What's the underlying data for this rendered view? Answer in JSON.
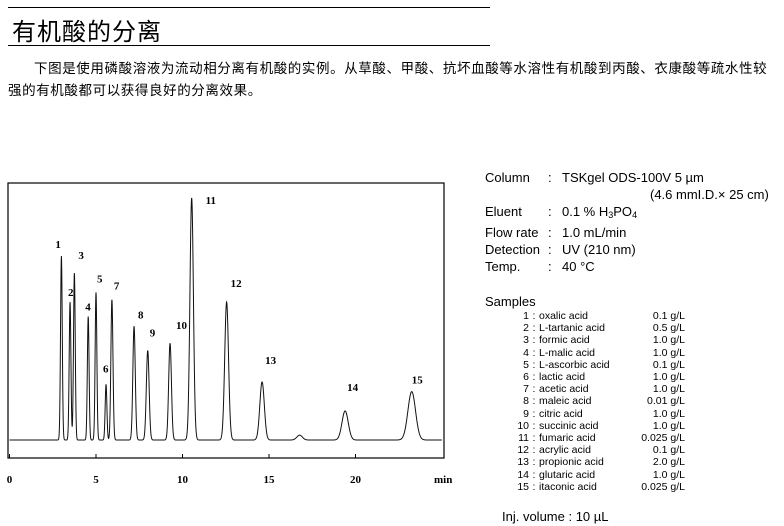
{
  "header": {
    "title": "有机酸的分离"
  },
  "description": "下图是使用磷酸溶液为流动相分离有机酸的实例。从草酸、甲酸、抗坏血酸等水溶性有机酸到丙酸、衣康酸等疏水性较强的有机酸都可以获得良好的分离效果。",
  "conditions": {
    "column": {
      "label": "Column",
      "value": "TSKgel ODS-100V 5 µm",
      "value2": "(4.6 mmI.D.× 25 cm)"
    },
    "eluent": {
      "label": "Eluent",
      "value_pre": "0.1 % H",
      "sub1": "3",
      "mid": "PO",
      "sub2": "4"
    },
    "flow": {
      "label": "Flow rate",
      "value": "1.0 mL/min"
    },
    "detection": {
      "label": "Detection",
      "value": "UV (210 nm)"
    },
    "temp": {
      "label": "Temp.",
      "value": "40 °C"
    },
    "colon": ":"
  },
  "samples": {
    "title": "Samples",
    "items": [
      {
        "n": "1",
        "name": "oxalic acid",
        "conc": "0.1 g/L"
      },
      {
        "n": "2",
        "name": "L-tartanic acid",
        "conc": "0.5 g/L"
      },
      {
        "n": "3",
        "name": "formic acid",
        "conc": "1.0 g/L"
      },
      {
        "n": "4",
        "name": "L-malic acid",
        "conc": "1.0 g/L"
      },
      {
        "n": "5",
        "name": "L-ascorbic acid",
        "conc": "0.1 g/L"
      },
      {
        "n": "6",
        "name": "lactic acid",
        "conc": "1.0 g/L"
      },
      {
        "n": "7",
        "name": "acetic acid",
        "conc": "1.0 g/L"
      },
      {
        "n": "8",
        "name": "maleic acid",
        "conc": "0.01 g/L"
      },
      {
        "n": "9",
        "name": "citric acid",
        "conc": "1.0 g/L"
      },
      {
        "n": "10",
        "name": "succinic acid",
        "conc": "1.0 g/L"
      },
      {
        "n": "11",
        "name": "fumaric acid",
        "conc": "0.025 g/L"
      },
      {
        "n": "12",
        "name": "acrylic acid",
        "conc": "0.1 g/L"
      },
      {
        "n": "13",
        "name": "propionic acid",
        "conc": "2.0 g/L"
      },
      {
        "n": "14",
        "name": "glutaric acid",
        "conc": "1.0 g/L"
      },
      {
        "n": "15",
        "name": "itaconic acid",
        "conc": "0.025 g/L"
      }
    ],
    "injection": "Inj. volume : 10 µL"
  },
  "chart_data": {
    "type": "line",
    "title": "",
    "xlabel": "min",
    "ylabel": "",
    "xlim": [
      0,
      25
    ],
    "xticks": [
      0,
      5,
      10,
      15,
      20
    ],
    "xtick_labels": [
      "0",
      "5",
      "10",
      "15",
      "20"
    ],
    "grid": false,
    "line_color": "#000000",
    "peaks": [
      {
        "label": "1",
        "rt": 3.0,
        "rel_height": 76,
        "width_min": 0.05
      },
      {
        "label": "2",
        "rt": 3.5,
        "rel_height": 57,
        "width_min": 0.05
      },
      {
        "label": "3",
        "rt": 3.75,
        "rel_height": 69,
        "width_min": 0.05
      },
      {
        "label": "4",
        "rt": 4.55,
        "rel_height": 51,
        "width_min": 0.05
      },
      {
        "label": "5",
        "rt": 5.0,
        "rel_height": 61,
        "width_min": 0.05
      },
      {
        "label": "6",
        "rt": 5.58,
        "rel_height": 23,
        "width_min": 0.05
      },
      {
        "label": "7",
        "rt": 5.92,
        "rel_height": 58,
        "width_min": 0.06
      },
      {
        "label": "8",
        "rt": 7.2,
        "rel_height": 47,
        "width_min": 0.07
      },
      {
        "label": "9",
        "rt": 7.99,
        "rel_height": 37,
        "width_min": 0.08
      },
      {
        "label": "10",
        "rt": 9.28,
        "rel_height": 40,
        "width_min": 0.08
      },
      {
        "label": "11",
        "rt": 10.53,
        "rel_height": 100,
        "width_min": 0.1
      },
      {
        "label": "12",
        "rt": 12.55,
        "rel_height": 57,
        "width_min": 0.11
      },
      {
        "label": "13",
        "rt": 14.6,
        "rel_height": 24,
        "width_min": 0.13
      },
      {
        "label": "",
        "rt": 16.77,
        "rel_height": 2,
        "width_min": 0.16
      },
      {
        "label": "14",
        "rt": 19.4,
        "rel_height": 12,
        "width_min": 0.18
      },
      {
        "label": "15",
        "rt": 23.25,
        "rel_height": 20,
        "width_min": 0.22
      }
    ]
  }
}
